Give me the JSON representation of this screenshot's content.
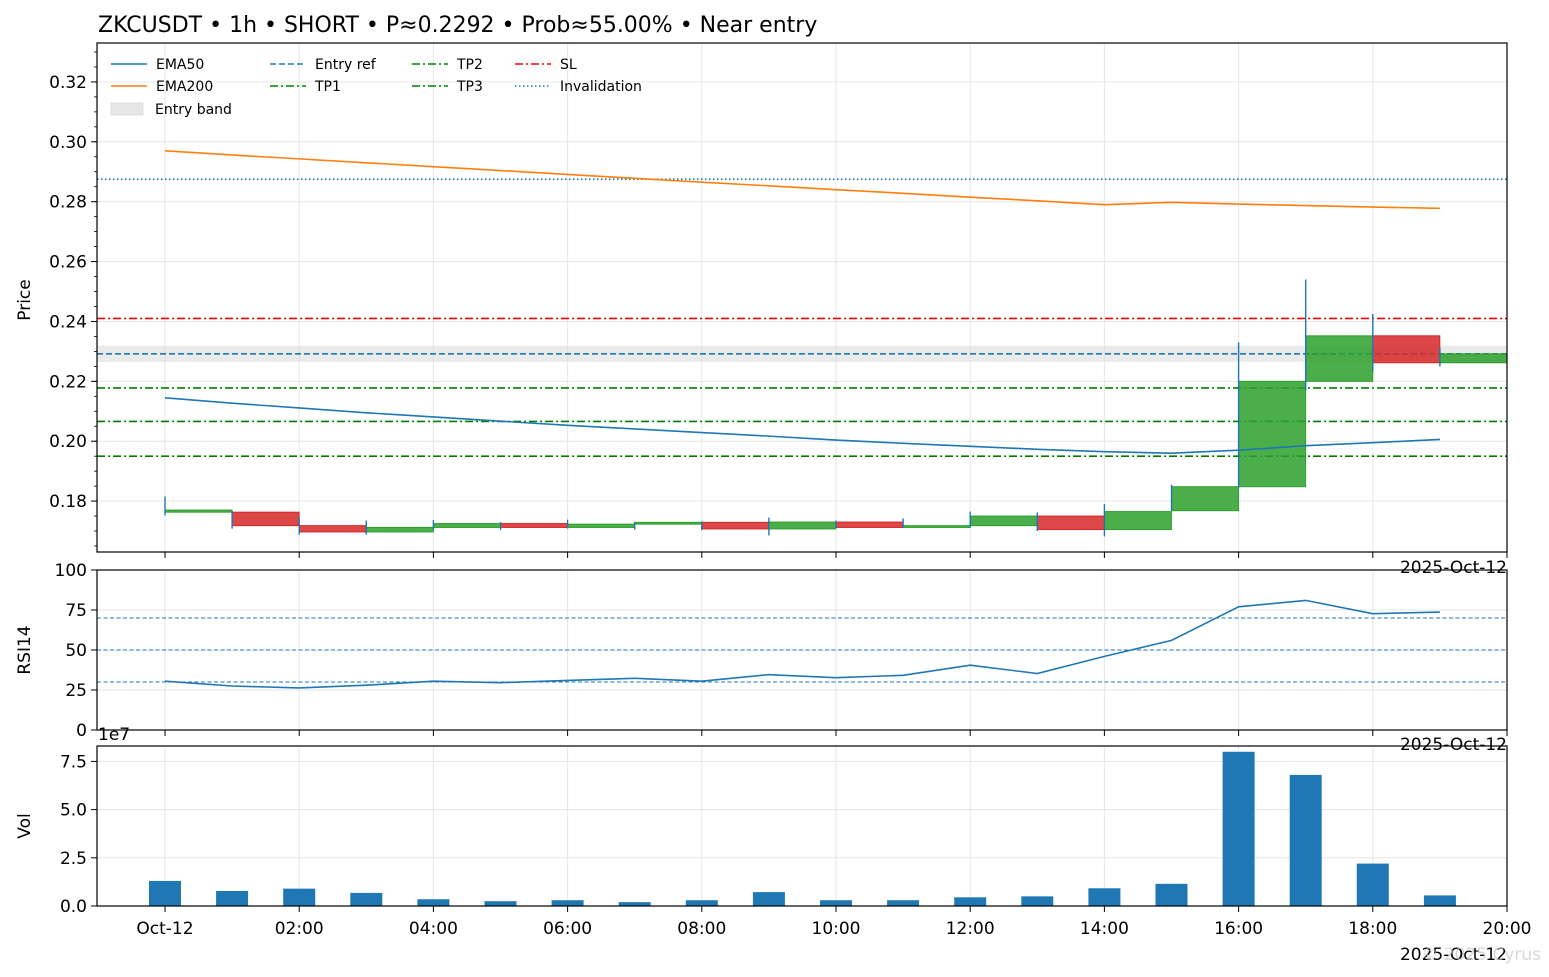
{
  "title": "ZKCUSDT • 1h • SHORT • P≈0.2292 • Prob≈55.00% • Near entry",
  "watermark": "© 2025 Cyrus",
  "colors": {
    "up": "#2ca02c",
    "down": "#d62728",
    "ema50": "#1f77b4",
    "ema200": "#ff7f0e",
    "entry_ref": "#1f77b4",
    "tp": "#008000",
    "sl": "#ff0000",
    "invalidation": "#1f77b4",
    "volume": "#1f77b4",
    "rsi": "#1f77b4",
    "band": "#d9d9d9",
    "grid": "#e6e6e6"
  },
  "legend": {
    "ema50": "EMA50",
    "ema200": "EMA200",
    "entry_band": "Entry band",
    "entry_ref": "Entry ref",
    "tp1": "TP1",
    "tp2": "TP2",
    "tp3": "TP3",
    "sl": "SL",
    "invalidation": "Invalidation"
  },
  "chart_data": [
    {
      "type": "candlestick",
      "ylabel": "Price",
      "ylim": [
        0.163,
        0.333
      ],
      "yticks": [
        "0.18",
        "0.20",
        "0.22",
        "0.24",
        "0.26",
        "0.28",
        "0.30",
        "0.32"
      ],
      "ytick_values": [
        0.18,
        0.2,
        0.22,
        0.24,
        0.26,
        0.28,
        0.3,
        0.32
      ],
      "x_offset_label": "2025-Oct-12",
      "candles": [
        {
          "o": 0.1763,
          "h": 0.1815,
          "l": 0.1752,
          "c": 0.177
        },
        {
          "o": 0.1763,
          "h": 0.1768,
          "l": 0.1708,
          "c": 0.1718
        },
        {
          "o": 0.1718,
          "h": 0.1745,
          "l": 0.1688,
          "c": 0.1697
        },
        {
          "o": 0.1697,
          "h": 0.1735,
          "l": 0.1688,
          "c": 0.1712
        },
        {
          "o": 0.1712,
          "h": 0.1737,
          "l": 0.1705,
          "c": 0.1725
        },
        {
          "o": 0.1725,
          "h": 0.173,
          "l": 0.1703,
          "c": 0.1712
        },
        {
          "o": 0.1712,
          "h": 0.1738,
          "l": 0.1708,
          "c": 0.1723
        },
        {
          "o": 0.1723,
          "h": 0.173,
          "l": 0.1705,
          "c": 0.1729
        },
        {
          "o": 0.1729,
          "h": 0.1732,
          "l": 0.1703,
          "c": 0.1707
        },
        {
          "o": 0.1707,
          "h": 0.1745,
          "l": 0.1685,
          "c": 0.173
        },
        {
          "o": 0.173,
          "h": 0.1735,
          "l": 0.171,
          "c": 0.1712
        },
        {
          "o": 0.1712,
          "h": 0.1742,
          "l": 0.171,
          "c": 0.1718
        },
        {
          "o": 0.1718,
          "h": 0.1765,
          "l": 0.1712,
          "c": 0.175
        },
        {
          "o": 0.175,
          "h": 0.1762,
          "l": 0.17,
          "c": 0.1705
        },
        {
          "o": 0.1705,
          "h": 0.179,
          "l": 0.1682,
          "c": 0.1765
        },
        {
          "o": 0.1768,
          "h": 0.1855,
          "l": 0.1768,
          "c": 0.1848
        },
        {
          "o": 0.1848,
          "h": 0.233,
          "l": 0.1845,
          "c": 0.22
        },
        {
          "o": 0.22,
          "h": 0.254,
          "l": 0.217,
          "c": 0.2352
        },
        {
          "o": 0.2352,
          "h": 0.2425,
          "l": 0.2232,
          "c": 0.2262
        },
        {
          "o": 0.2262,
          "h": 0.2312,
          "l": 0.225,
          "c": 0.2292
        }
      ],
      "ema50": [
        0.2145,
        0.2127,
        0.2111,
        0.2095,
        0.2081,
        0.2067,
        0.2053,
        0.2041,
        0.2029,
        0.2017,
        0.2004,
        0.1993,
        0.1983,
        0.1973,
        0.1965,
        0.196,
        0.197,
        0.1985,
        0.1995,
        0.2006
      ],
      "ema200": [
        0.297,
        0.2956,
        0.2943,
        0.293,
        0.2917,
        0.2904,
        0.2891,
        0.2878,
        0.2865,
        0.2853,
        0.284,
        0.2828,
        0.2815,
        0.2803,
        0.279,
        0.2798,
        0.2792,
        0.2787,
        0.2782,
        0.2778
      ],
      "levels": {
        "entry_ref": 0.2292,
        "entry_band": [
          0.2265,
          0.2319
        ],
        "tp1": 0.2178,
        "tp2": 0.2066,
        "tp3": 0.195,
        "sl": 0.241,
        "invalidation": 0.2875
      }
    },
    {
      "type": "line",
      "ylabel": "RSI14",
      "ylim": [
        0,
        100
      ],
      "yticks": [
        "0",
        "25",
        "50",
        "75",
        "100"
      ],
      "ytick_values": [
        0,
        25,
        50,
        75,
        100
      ],
      "ref_lines": [
        30,
        50,
        70
      ],
      "x_offset_label": "2025-Oct-12",
      "values": [
        30.5,
        27.5,
        26.3,
        28.0,
        30.5,
        29.6,
        31.0,
        32.3,
        30.5,
        34.6,
        32.7,
        34.2,
        40.5,
        35.3,
        46.0,
        56.0,
        77.0,
        81.0,
        72.7,
        73.7
      ]
    },
    {
      "type": "bar",
      "ylabel": "Vol",
      "ylim": [
        0,
        8.3
      ],
      "offset_text": "1e7",
      "yticks": [
        "0.0",
        "2.5",
        "5.0",
        "7.5"
      ],
      "ytick_values": [
        0,
        2.5,
        5,
        7.5
      ],
      "values": [
        1.3,
        0.78,
        0.9,
        0.68,
        0.35,
        0.25,
        0.3,
        0.2,
        0.3,
        0.72,
        0.3,
        0.3,
        0.45,
        0.5,
        0.92,
        1.15,
        8.0,
        6.8,
        2.2,
        0.55
      ],
      "xticks": [
        "Oct-12",
        "02:00",
        "04:00",
        "06:00",
        "08:00",
        "10:00",
        "12:00",
        "14:00",
        "16:00",
        "18:00",
        "20:00"
      ],
      "xtick_hours": [
        0,
        2,
        4,
        6,
        8,
        10,
        12,
        14,
        16,
        18,
        20
      ],
      "x_offset_label": "2025-Oct-12"
    }
  ]
}
